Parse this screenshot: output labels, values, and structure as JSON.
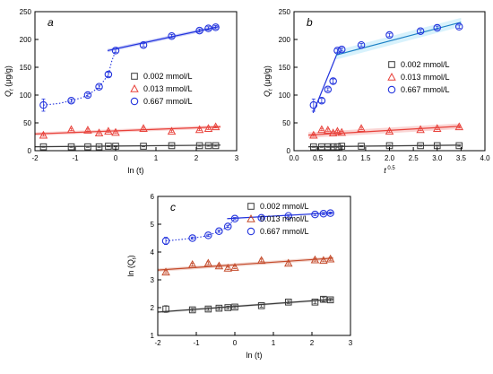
{
  "chart_data": [
    {
      "id": "a",
      "type": "scatter",
      "panel_label": "a",
      "xlabel": "ln (t)",
      "ylabel": "Qt (μg/g)",
      "ylabel_base": "Q",
      "ylabel_sub": "t",
      "ylabel_unit": " (μg/g)",
      "xlim": [
        -2,
        3
      ],
      "ylim": [
        0,
        250
      ],
      "xticks": [
        -2,
        -1,
        0,
        1,
        2,
        3
      ],
      "xtick_labels": [
        "-2",
        "-1",
        "0",
        "1",
        "2",
        "3"
      ],
      "yticks": [
        0,
        50,
        100,
        150,
        200,
        250
      ],
      "ytick_labels": [
        "0",
        "50",
        "100",
        "150",
        "200",
        "250"
      ],
      "legend_position": "center-right",
      "series": [
        {
          "name": "0.002 mmol/L",
          "marker": "square",
          "color": "#3a3a3a",
          "x": [
            -1.79,
            -1.1,
            -0.69,
            -0.41,
            -0.18,
            0,
            0.69,
            1.39,
            2.08,
            2.3,
            2.48
          ],
          "y": [
            7,
            7,
            7,
            7,
            8,
            8,
            8,
            9,
            9,
            9,
            9
          ],
          "err": [
            1,
            1,
            1,
            1,
            1,
            1,
            1,
            1,
            1,
            1,
            1
          ],
          "fits": [
            {
              "style": "solid",
              "x": [
                -2,
                2.6
              ],
              "y": [
                7,
                10
              ],
              "band": 1
            }
          ],
          "dotted": null
        },
        {
          "name": "0.013 mmol/L",
          "marker": "triangle",
          "color": "#e8413a",
          "x": [
            -1.79,
            -1.1,
            -0.69,
            -0.41,
            -0.18,
            0,
            0.69,
            1.39,
            2.08,
            2.3,
            2.48
          ],
          "y": [
            28,
            38,
            37,
            32,
            35,
            33,
            40,
            35,
            38,
            40,
            43
          ],
          "err": [
            2,
            2,
            2,
            2,
            2,
            2,
            2,
            2,
            2,
            2,
            2
          ],
          "fits": [
            {
              "style": "solid",
              "x": [
                -2,
                2.6
              ],
              "y": [
                30,
                43
              ],
              "band": 3
            }
          ],
          "dotted": null
        },
        {
          "name": "0.667 mmol/L",
          "marker": "circle",
          "color": "#2233dd",
          "x": [
            -1.79,
            -1.1,
            -0.69,
            -0.41,
            -0.18,
            0,
            0.69,
            1.39,
            2.08,
            2.3,
            2.48
          ],
          "y": [
            82,
            90,
            100,
            115,
            137,
            180,
            190,
            206,
            216,
            220,
            222
          ],
          "err": [
            11,
            3,
            3,
            3,
            4,
            3,
            3,
            3,
            3,
            3,
            3
          ],
          "fits": [
            {
              "style": "solid",
              "x": [
                -0.2,
                2.55
              ],
              "y": [
                180,
                223
              ],
              "band": 3
            }
          ],
          "dotted": {
            "x": [
              -1.79,
              -1.4,
              -1.1,
              -0.85,
              -0.69,
              -0.55,
              -0.41,
              -0.3,
              -0.18,
              -0.1,
              0
            ],
            "y": [
              82,
              85,
              90,
              95,
              100,
              107,
              115,
              125,
              137,
              160,
              180
            ]
          }
        }
      ]
    },
    {
      "id": "b",
      "type": "scatter",
      "panel_label": "b",
      "xlabel": "t0.5",
      "xlabel_base": "t",
      "xlabel_sup": "0.5",
      "ylabel": "Qt (μg/g)",
      "ylabel_base": "Q",
      "ylabel_sub": "t",
      "ylabel_unit": " (μg/g)",
      "xlim": [
        0,
        4
      ],
      "ylim": [
        0,
        250
      ],
      "xticks": [
        0,
        0.5,
        1,
        1.5,
        2,
        2.5,
        3,
        3.5,
        4
      ],
      "xtick_labels": [
        "0.0",
        "0.5",
        "1.0",
        "1.5",
        "2.0",
        "2.5",
        "3.0",
        "3.5",
        "4.0"
      ],
      "yticks": [
        0,
        50,
        100,
        150,
        200,
        250
      ],
      "ytick_labels": [
        "0",
        "50",
        "100",
        "150",
        "200",
        "250"
      ],
      "legend_position": "center-right",
      "series": [
        {
          "name": "0.002 mmol/L",
          "marker": "square",
          "color": "#3a3a3a",
          "x": [
            0.41,
            0.58,
            0.71,
            0.82,
            0.91,
            1.0,
            1.41,
            2.0,
            2.65,
            3.0,
            3.46
          ],
          "y": [
            7,
            7,
            7,
            7,
            7,
            8,
            8,
            9,
            9,
            9,
            9
          ],
          "err": [
            1,
            1,
            1,
            1,
            1,
            1,
            1,
            1,
            1,
            1,
            1
          ],
          "fits": [
            {
              "style": "solid",
              "x": [
                0.3,
                3.5
              ],
              "y": [
                7,
                10
              ],
              "band": 1
            }
          ],
          "dotted": null
        },
        {
          "name": "0.013 mmol/L",
          "marker": "triangle",
          "color": "#e8413a",
          "x": [
            0.41,
            0.58,
            0.71,
            0.82,
            0.91,
            1.0,
            1.41,
            2.0,
            2.65,
            3.0,
            3.46
          ],
          "y": [
            28,
            38,
            37,
            32,
            35,
            33,
            40,
            35,
            38,
            40,
            43
          ],
          "err": [
            2,
            2,
            2,
            2,
            2,
            2,
            2,
            2,
            2,
            2,
            2
          ],
          "fits": [
            {
              "style": "solid",
              "x": [
                0.3,
                3.5
              ],
              "y": [
                28,
                44
              ],
              "band": 5
            }
          ],
          "dotted": null
        },
        {
          "name": "0.667 mmol/L",
          "marker": "circle",
          "color": "#2233dd",
          "x": [
            0.41,
            0.58,
            0.71,
            0.82,
            0.91,
            1.0,
            1.41,
            2.0,
            2.65,
            3.0,
            3.46
          ],
          "y": [
            82,
            90,
            110,
            125,
            180,
            182,
            190,
            208,
            215,
            221,
            223
          ],
          "err": [
            11,
            4,
            3,
            4,
            3,
            3,
            3,
            3,
            3,
            3,
            3
          ],
          "fits": [
            {
              "style": "solid",
              "x": [
                0.4,
                0.92
              ],
              "y": [
                68,
                178
              ],
              "band": 0
            },
            {
              "style": "solid",
              "x": [
                0.88,
                3.5
              ],
              "y": [
                172,
                231
              ],
              "band": 8
            }
          ],
          "dotted": null
        }
      ]
    },
    {
      "id": "c",
      "type": "scatter",
      "panel_label": "c",
      "xlabel": "ln (t)",
      "ylabel": "ln (Qt)",
      "ylabel_base": "ln (Q",
      "ylabel_sub": "t",
      "ylabel_unit": ")",
      "xlim": [
        -2,
        3
      ],
      "ylim": [
        1,
        6
      ],
      "xticks": [
        -2,
        -1,
        0,
        1,
        2,
        3
      ],
      "xtick_labels": [
        "-2",
        "-1",
        "0",
        "1",
        "2",
        "3"
      ],
      "yticks": [
        1,
        2,
        3,
        4,
        5,
        6
      ],
      "ytick_labels": [
        "1",
        "2",
        "3",
        "4",
        "5",
        "6"
      ],
      "legend_position": "top-right",
      "series": [
        {
          "name": "0.002 mmol/L",
          "marker": "square",
          "color": "#3a3a3a",
          "x": [
            -1.79,
            -1.1,
            -0.69,
            -0.41,
            -0.18,
            0,
            0.69,
            1.39,
            2.08,
            2.3,
            2.48
          ],
          "y": [
            1.95,
            1.92,
            1.95,
            1.98,
            2.0,
            2.02,
            2.07,
            2.2,
            2.2,
            2.3,
            2.28
          ],
          "err": [
            0.12,
            0.05,
            0.05,
            0.05,
            0.05,
            0.05,
            0.05,
            0.05,
            0.05,
            0.08,
            0.05
          ],
          "fits": [
            {
              "style": "solid",
              "x": [
                -2,
                2.55
              ],
              "y": [
                1.84,
                2.3
              ],
              "band": 0.04
            }
          ],
          "dotted": null
        },
        {
          "name": "0.013 mmol/L",
          "marker": "triangle",
          "color": "#c44a2a",
          "x": [
            -1.79,
            -1.1,
            -0.69,
            -0.41,
            -0.18,
            0,
            0.69,
            1.39,
            2.08,
            2.3,
            2.48
          ],
          "y": [
            3.28,
            3.55,
            3.6,
            3.5,
            3.42,
            3.45,
            3.7,
            3.6,
            3.72,
            3.7,
            3.75
          ],
          "err": [
            0.05,
            0.05,
            0.05,
            0.05,
            0.05,
            0.05,
            0.05,
            0.05,
            0.05,
            0.05,
            0.05
          ],
          "fits": [
            {
              "style": "solid",
              "x": [
                -2,
                2.55
              ],
              "y": [
                3.35,
                3.78
              ],
              "band": 0.06
            }
          ],
          "dotted": null
        },
        {
          "name": "0.667 mmol/L",
          "marker": "circle",
          "color": "#2233dd",
          "x": [
            -1.79,
            -1.1,
            -0.69,
            -0.41,
            -0.18,
            0,
            0.69,
            1.39,
            2.08,
            2.3,
            2.48
          ],
          "y": [
            4.4,
            4.5,
            4.6,
            4.75,
            4.92,
            5.2,
            5.23,
            5.3,
            5.35,
            5.38,
            5.4
          ],
          "err": [
            0.13,
            0.04,
            0.04,
            0.04,
            0.04,
            0.04,
            0.04,
            0.04,
            0.04,
            0.04,
            0.04
          ],
          "fits": [
            {
              "style": "solid",
              "x": [
                -0.2,
                2.55
              ],
              "y": [
                5.2,
                5.41
              ],
              "band": 0.02
            }
          ],
          "dotted": {
            "x": [
              -1.79,
              -1.4,
              -1.1,
              -0.85,
              -0.69,
              -0.55,
              -0.41,
              -0.3,
              -0.18,
              -0.1,
              0
            ],
            "y": [
              4.4,
              4.45,
              4.5,
              4.55,
              4.6,
              4.67,
              4.75,
              4.82,
              4.92,
              5.05,
              5.2
            ]
          }
        }
      ]
    }
  ]
}
